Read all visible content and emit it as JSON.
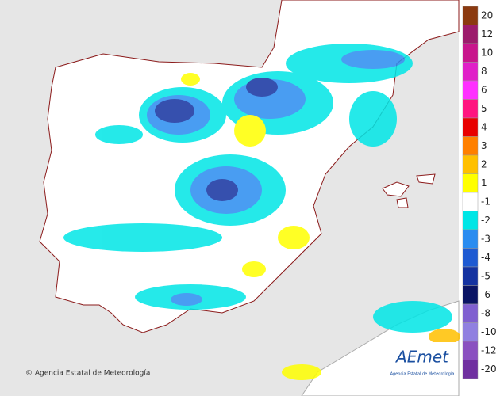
{
  "credit": "© Agencia Estatal de Meteorología",
  "logo": {
    "name": "AEmet",
    "subtitle": "Agencia Estatal de Meteorología"
  },
  "legend": {
    "items": [
      {
        "value": 20,
        "color": "#8b3a10"
      },
      {
        "value": 12,
        "color": "#9c1c6c"
      },
      {
        "value": 10,
        "color": "#c8168c"
      },
      {
        "value": 8,
        "color": "#e020c8"
      },
      {
        "value": 6,
        "color": "#ff30ff"
      },
      {
        "value": 5,
        "color": "#ff1480"
      },
      {
        "value": 4,
        "color": "#e80000"
      },
      {
        "value": 3,
        "color": "#ff8000"
      },
      {
        "value": 2,
        "color": "#ffc000"
      },
      {
        "value": 1,
        "color": "#ffff00"
      },
      {
        "value": -1,
        "color": "#ffffff"
      },
      {
        "value": -2,
        "color": "#00e6e6"
      },
      {
        "value": -3,
        "color": "#2a8cf0"
      },
      {
        "value": -4,
        "color": "#1e5ad2"
      },
      {
        "value": -5,
        "color": "#1432a0"
      },
      {
        "value": -6,
        "color": "#0a1464"
      },
      {
        "value": -8,
        "color": "#8060d0"
      },
      {
        "value": -10,
        "color": "#9080e0"
      },
      {
        "value": -12,
        "color": "#8a50c0"
      },
      {
        "value": -20,
        "color": "#7030a0"
      }
    ]
  }
}
